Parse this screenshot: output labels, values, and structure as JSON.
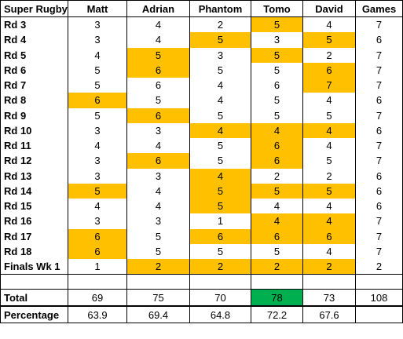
{
  "colors": {
    "highlight": "#ffc000",
    "best_total": "#00b050"
  },
  "headers": [
    "Super Rugby",
    "Matt",
    "Adrian",
    "Phantom",
    "Tomo",
    "David",
    "Games"
  ],
  "rows": [
    {
      "round": "Rd 3",
      "scores": [
        "3",
        "4",
        "2",
        "5",
        "4"
      ],
      "games": "7",
      "hl": [
        3
      ]
    },
    {
      "round": "Rd 4",
      "scores": [
        "3",
        "4",
        "5",
        "3",
        "5"
      ],
      "games": "6",
      "hl": [
        2,
        4
      ]
    },
    {
      "round": "Rd 5",
      "scores": [
        "4",
        "5",
        "3",
        "5",
        "2"
      ],
      "games": "7",
      "hl": [
        1,
        3
      ]
    },
    {
      "round": "Rd 6",
      "scores": [
        "5",
        "6",
        "5",
        "5",
        "6"
      ],
      "games": "7",
      "hl": [
        1,
        4
      ]
    },
    {
      "round": "Rd 7",
      "scores": [
        "5",
        "6",
        "4",
        "6",
        "7"
      ],
      "games": "7",
      "hl": [
        4
      ]
    },
    {
      "round": "Rd 8",
      "scores": [
        "6",
        "5",
        "4",
        "5",
        "4"
      ],
      "games": "6",
      "hl": [
        0
      ]
    },
    {
      "round": "Rd 9",
      "scores": [
        "5",
        "6",
        "5",
        "5",
        "5"
      ],
      "games": "7",
      "hl": [
        1
      ]
    },
    {
      "round": "Rd 10",
      "scores": [
        "3",
        "3",
        "4",
        "4",
        "4"
      ],
      "games": "6",
      "hl": [
        2,
        3,
        4
      ]
    },
    {
      "round": "Rd 11",
      "scores": [
        "4",
        "4",
        "5",
        "6",
        "4"
      ],
      "games": "7",
      "hl": [
        3
      ]
    },
    {
      "round": "Rd 12",
      "scores": [
        "3",
        "6",
        "5",
        "6",
        "5"
      ],
      "games": "7",
      "hl": [
        1,
        3
      ]
    },
    {
      "round": "Rd 13",
      "scores": [
        "3",
        "3",
        "4",
        "2",
        "2"
      ],
      "games": "6",
      "hl": [
        2
      ]
    },
    {
      "round": "Rd 14",
      "scores": [
        "5",
        "4",
        "5",
        "5",
        "5"
      ],
      "games": "6",
      "hl": [
        0,
        2,
        3,
        4
      ]
    },
    {
      "round": "Rd 15",
      "scores": [
        "4",
        "4",
        "5",
        "4",
        "4"
      ],
      "games": "6",
      "hl": [
        2
      ]
    },
    {
      "round": "Rd 16",
      "scores": [
        "3",
        "3",
        "1",
        "4",
        "4"
      ],
      "games": "7",
      "hl": [
        3,
        4
      ]
    },
    {
      "round": "Rd 17",
      "scores": [
        "6",
        "5",
        "6",
        "6",
        "6"
      ],
      "games": "7",
      "hl": [
        0,
        2,
        3,
        4
      ]
    },
    {
      "round": "Rd 18",
      "scores": [
        "6",
        "5",
        "5",
        "5",
        "4"
      ],
      "games": "7",
      "hl": [
        0
      ]
    },
    {
      "round": "Finals Wk 1",
      "scores": [
        "1",
        "2",
        "2",
        "2",
        "2"
      ],
      "games": "2",
      "hl": [
        1,
        2,
        3,
        4
      ]
    }
  ],
  "total": {
    "label": "Total",
    "scores": [
      "69",
      "75",
      "70",
      "78",
      "73"
    ],
    "games": "108",
    "best": [
      3
    ]
  },
  "percentage": {
    "label": "Percentage",
    "scores": [
      "63.9",
      "69.4",
      "64.8",
      "72.2",
      "67.6"
    ],
    "games": ""
  }
}
